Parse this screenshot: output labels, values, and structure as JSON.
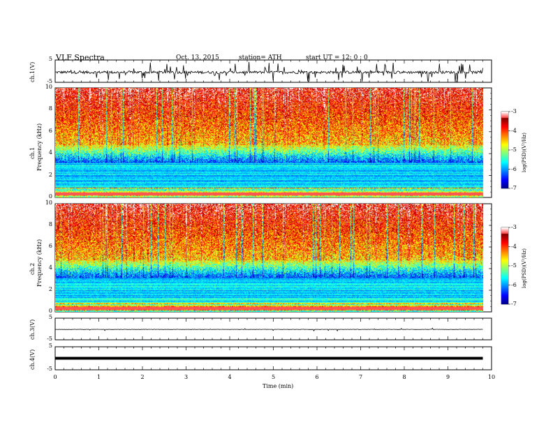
{
  "header": {
    "title": "VLF  Spectra",
    "date": "Oct. 13, 2015",
    "station": "station= ATH",
    "start_ut": "start  UT  =    12: 0   : 0"
  },
  "chart_data": [
    {
      "type": "line",
      "panel": "ch1-waveform",
      "ylabel": "ch.1(V)",
      "y_ticks": [
        "5",
        "-5"
      ],
      "ylim": [
        -5,
        5
      ],
      "xlim": [
        0,
        10
      ],
      "data_end_min": 9.8,
      "baseline": -0.5
    },
    {
      "type": "heatmap",
      "panel": "ch1-spectrogram",
      "ylabel": "ch.1\nFrequency  (kHz)",
      "ylabel_line1": "ch.1",
      "ylabel_line2": "Frequency  (kHz)",
      "y_ticks": [
        "0",
        "2",
        "4",
        "6",
        "8",
        "10"
      ],
      "ylim": [
        0,
        10
      ],
      "xlim": [
        0,
        10
      ],
      "colorbar": {
        "label": "log(PSD)(V²/Hz)",
        "ticks": [
          "-3",
          "-4",
          "-5",
          "-6",
          "-7"
        ],
        "range": [
          -7,
          -3
        ]
      }
    },
    {
      "type": "heatmap",
      "panel": "ch2-spectrogram",
      "ylabel_line1": "ch.2",
      "ylabel_line2": "Frequency  (kHz)",
      "y_ticks": [
        "0",
        "2",
        "4",
        "6",
        "8",
        "10"
      ],
      "ylim": [
        0,
        10
      ],
      "xlim": [
        0,
        10
      ],
      "colorbar": {
        "label": "log(PSD)(V²/Hz)",
        "ticks": [
          "-3",
          "-4",
          "-5",
          "-6",
          "-7"
        ],
        "range": [
          -7,
          -3
        ]
      }
    },
    {
      "type": "line",
      "panel": "ch3-waveform",
      "ylabel": "ch.3(V)",
      "y_ticks": [
        "5",
        "-5"
      ],
      "ylim": [
        -5,
        5
      ],
      "xlim": [
        0,
        10
      ],
      "baseline": -0.2
    },
    {
      "type": "line",
      "panel": "ch4-waveform",
      "ylabel": "ch.4(V)",
      "y_ticks": [
        "5",
        "-5"
      ],
      "ylim": [
        -5,
        5
      ],
      "xlim": [
        0,
        10
      ],
      "baseline": 0
    }
  ],
  "x_axis": {
    "label": "Time  (min)",
    "ticks": [
      "0",
      "1",
      "2",
      "3",
      "4",
      "5",
      "6",
      "7",
      "8",
      "9",
      "10"
    ]
  },
  "colors": {
    "trace": "#000000",
    "frame": "#000000"
  }
}
